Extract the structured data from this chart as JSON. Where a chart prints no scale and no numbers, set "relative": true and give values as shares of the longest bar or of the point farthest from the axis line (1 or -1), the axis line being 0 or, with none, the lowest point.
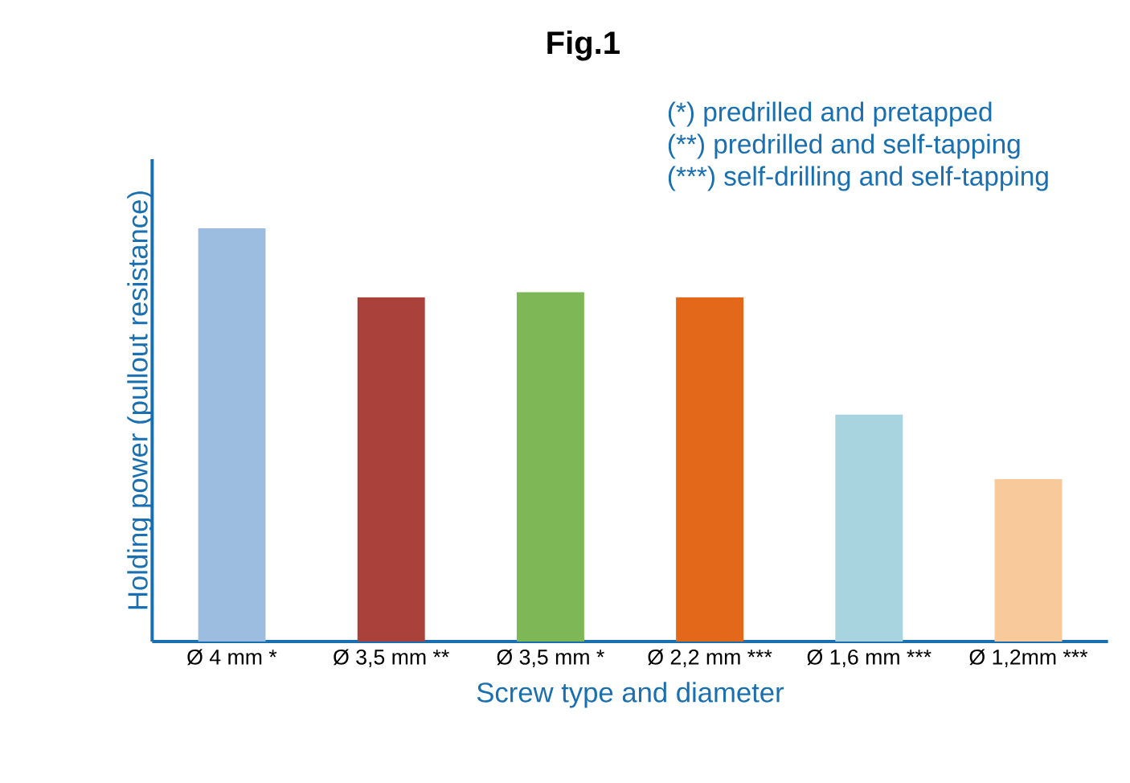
{
  "chart_data": {
    "type": "bar",
    "title": "Fig.1",
    "xlabel": "Screw type and diameter",
    "ylabel": "Holding power (pullout resistance)",
    "categories": [
      "Ø 4 mm *",
      "Ø 3,5 mm **",
      "Ø 3,5 mm *",
      "Ø 2,2 mm ***",
      "Ø 1,6 mm ***",
      "Ø 1,2mm ***"
    ],
    "values": [
      1,
      0.833,
      0.845,
      0.833,
      0.549,
      0.393
    ],
    "colors": [
      "#9dbde0",
      "#ab413b",
      "#7eb856",
      "#e4681a",
      "#a8d4e0",
      "#f8c99a"
    ],
    "relative": true,
    "annotations": [
      "(*) predrilled and pretapped",
      "(**) predrilled and self-tapping",
      "(***) self-drilling and self-tapping"
    ]
  }
}
